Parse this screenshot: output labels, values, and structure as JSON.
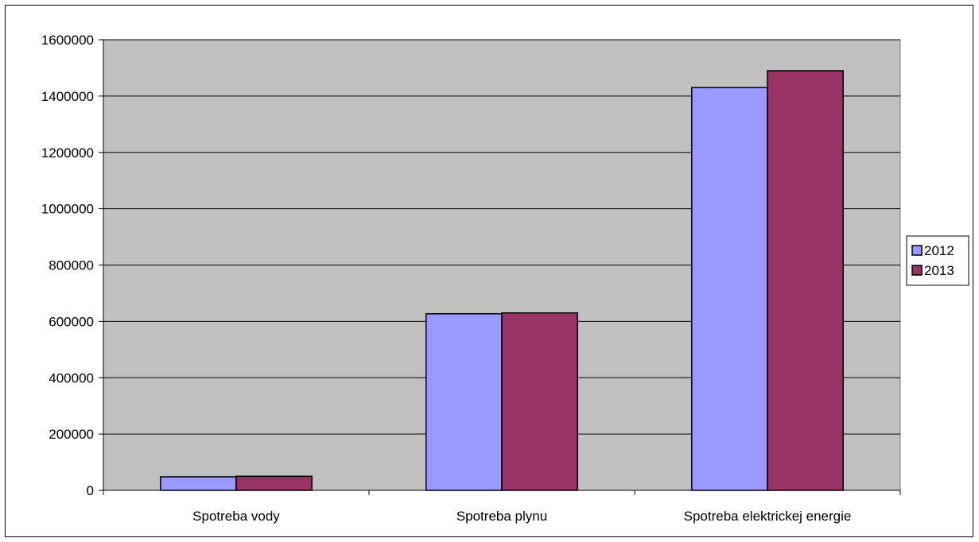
{
  "chart_data": {
    "type": "bar",
    "title": "",
    "xlabel": "",
    "ylabel": "",
    "categories": [
      "Spotreba vody",
      "Spotreba plynu",
      "Spotreba elektrickej energie"
    ],
    "series": [
      {
        "name": "2012",
        "values": [
          48000,
          627000,
          1430000
        ],
        "color": "#9999ff"
      },
      {
        "name": "2013",
        "values": [
          50000,
          630000,
          1490000
        ],
        "color": "#993366"
      }
    ],
    "ylim": [
      0,
      1600000
    ],
    "yticks": [
      0,
      200000,
      400000,
      600000,
      800000,
      1000000,
      1200000,
      1400000,
      1600000
    ],
    "grid": true,
    "legend_position": "right",
    "plot_background": "#c0c0c0"
  }
}
